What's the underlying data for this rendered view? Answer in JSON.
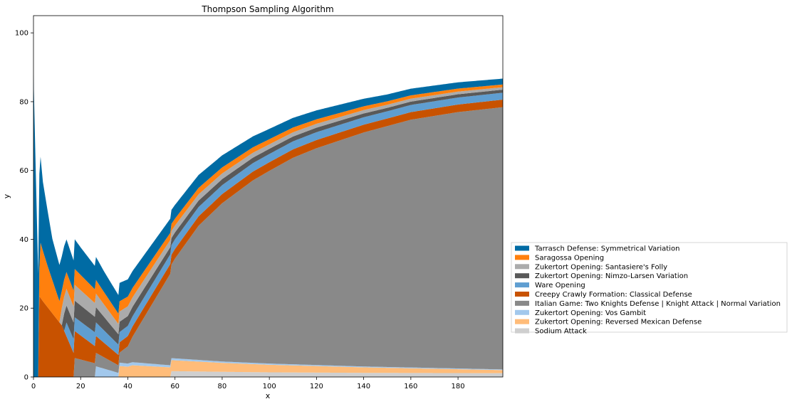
{
  "chart_data": {
    "type": "area",
    "stacked": true,
    "title": "Thompson Sampling Algorithm",
    "xlabel": "x",
    "ylabel": "y",
    "xlim": [
      0,
      199
    ],
    "ylim": [
      0,
      105
    ],
    "x_ticks": [
      0,
      20,
      40,
      60,
      80,
      100,
      120,
      140,
      160,
      180
    ],
    "y_ticks": [
      0,
      20,
      40,
      60,
      80,
      100
    ],
    "grid": false,
    "legend_position": "right, outside plot",
    "series": [
      {
        "name": "Sodium Attack",
        "color": "#cfcfcf",
        "points": [
          [
            0,
            0
          ],
          [
            58,
            0
          ],
          [
            58,
            1.7
          ],
          [
            80,
            1.5
          ],
          [
            100,
            1.35
          ],
          [
            140,
            1.2
          ],
          [
            199,
            1.1
          ]
        ]
      },
      {
        "name": "Zukertort Opening: Reversed Mexican Defense",
        "color": "#ffbc79",
        "points": [
          [
            0,
            0
          ],
          [
            36,
            0
          ],
          [
            36,
            3.2
          ],
          [
            40,
            3
          ],
          [
            42,
            3.4
          ],
          [
            58,
            2.8
          ],
          [
            58,
            3.2
          ],
          [
            80,
            2.6
          ],
          [
            100,
            2.2
          ],
          [
            140,
            1.6
          ],
          [
            199,
            0.9
          ]
        ]
      },
      {
        "name": "Zukertort Opening: Vos Gambit",
        "color": "#a2c8ec",
        "points": [
          [
            0,
            0
          ],
          [
            26,
            0
          ],
          [
            26,
            3.2
          ],
          [
            36,
            1.2
          ],
          [
            36,
            1
          ],
          [
            40,
            0.9
          ],
          [
            42,
            0.9
          ],
          [
            58,
            0.6
          ],
          [
            80,
            0.4
          ],
          [
            140,
            0.25
          ],
          [
            199,
            0.2
          ]
        ]
      },
      {
        "name": "Italian Game: Two Knights Defense |  Knight Attack |  Normal Variation",
        "color": "#898989",
        "points": [
          [
            0,
            0
          ],
          [
            17,
            0
          ],
          [
            17,
            5.6
          ],
          [
            26,
            4
          ],
          [
            26,
            4
          ],
          [
            36,
            2.2
          ],
          [
            36,
            2.6
          ],
          [
            40,
            5
          ],
          [
            50,
            17
          ],
          [
            60,
            29
          ],
          [
            70,
            39
          ],
          [
            80,
            46
          ],
          [
            93,
            53
          ],
          [
            100,
            56
          ],
          [
            110,
            60
          ],
          [
            120,
            63
          ],
          [
            140,
            68
          ],
          [
            160,
            72
          ],
          [
            180,
            74.5
          ],
          [
            199,
            76.2
          ]
        ]
      },
      {
        "name": "Creepy Crawly Formation: Classical Defense",
        "color": "#c85200",
        "points": [
          [
            0,
            0
          ],
          [
            2,
            0
          ],
          [
            2,
            24
          ],
          [
            4,
            22
          ],
          [
            12,
            15
          ],
          [
            17,
            7
          ],
          [
            17,
            8
          ],
          [
            26,
            5
          ],
          [
            36,
            3
          ],
          [
            40,
            3
          ],
          [
            60,
            2.8
          ],
          [
            100,
            2.5
          ],
          [
            150,
            2.2
          ],
          [
            199,
            2.2
          ]
        ]
      },
      {
        "name": "Ware Opening",
        "color": "#5f9ed1",
        "points": [
          [
            0,
            0
          ],
          [
            13,
            0
          ],
          [
            14,
            4
          ],
          [
            26,
            4
          ],
          [
            36,
            3
          ],
          [
            60,
            2.8
          ],
          [
            100,
            2.4
          ],
          [
            150,
            2.1
          ],
          [
            199,
            2
          ]
        ]
      },
      {
        "name": "Zukertort Opening: Nimzo-Larsen Variation",
        "color": "#595959",
        "points": [
          [
            0,
            0
          ],
          [
            12,
            0
          ],
          [
            13,
            5
          ],
          [
            26,
            4.5
          ],
          [
            36,
            3
          ],
          [
            60,
            2
          ],
          [
            100,
            1.5
          ],
          [
            150,
            1
          ],
          [
            199,
            0.9
          ]
        ]
      },
      {
        "name": "Zukertort Opening: Santasiere's Folly",
        "color": "#ababab",
        "points": [
          [
            0,
            0
          ],
          [
            11,
            0
          ],
          [
            12,
            5
          ],
          [
            26,
            4
          ],
          [
            36,
            3
          ],
          [
            60,
            2
          ],
          [
            100,
            1.3
          ],
          [
            150,
            0.9
          ],
          [
            199,
            0.7
          ]
        ]
      },
      {
        "name": "Saragossa Opening",
        "color": "#ff800e",
        "points": [
          [
            0,
            0
          ],
          [
            2,
            0
          ],
          [
            3,
            16
          ],
          [
            6,
            12
          ],
          [
            12,
            5
          ],
          [
            26,
            4
          ],
          [
            36,
            3
          ],
          [
            60,
            2
          ],
          [
            100,
            1.5
          ],
          [
            150,
            1
          ],
          [
            199,
            0.8
          ]
        ]
      },
      {
        "name": "Tarrasch Defense: Symmetrical Variation",
        "color": "#006ba4",
        "points": [
          [
            0,
            88
          ],
          [
            2,
            30
          ],
          [
            4,
            20
          ],
          [
            8,
            12
          ],
          [
            12,
            10
          ],
          [
            20,
            8
          ],
          [
            30,
            6
          ],
          [
            40,
            5
          ],
          [
            60,
            4
          ],
          [
            100,
            3
          ],
          [
            150,
            2
          ],
          [
            199,
            1.7
          ]
        ]
      }
    ]
  }
}
